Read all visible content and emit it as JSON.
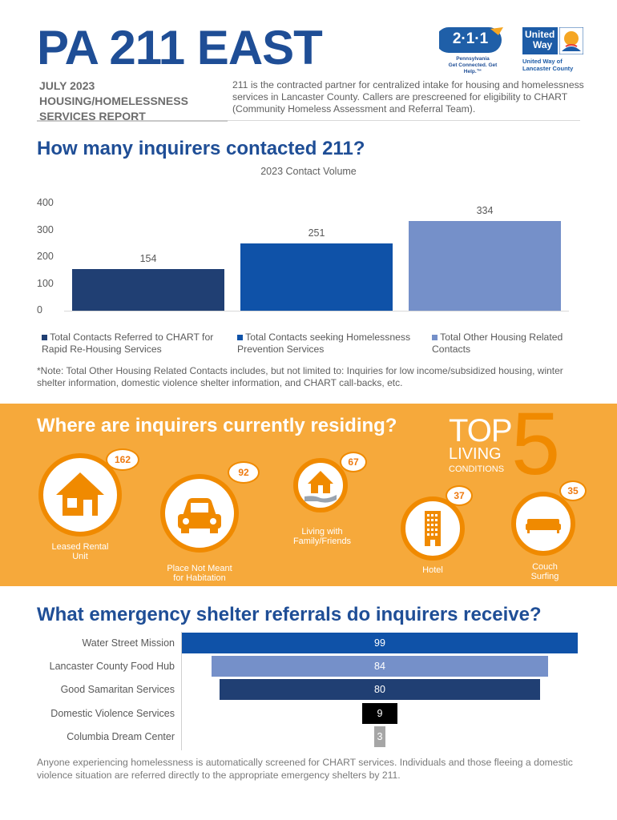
{
  "header": {
    "title": "PA 211 EAST",
    "subtitle_lines": [
      "JULY 2023",
      "HOUSING/HOMELESSNESS",
      "SERVICES REPORT"
    ],
    "intro": "211 is the contracted partner for centralized intake for housing and homelessness services in Lancaster County. Callers are prescreened for eligibility to CHART (Community Homeless Assessment and Referral Team).",
    "logo_211": {
      "badge": "2·1·1",
      "line1": "Pennsylvania",
      "line2": "Get Connected. Get Help.™"
    },
    "logo_uw": {
      "word1": "United",
      "word2": "Way",
      "caption1": "United Way of",
      "caption2": "Lancaster County"
    }
  },
  "contacts": {
    "heading": "How many inquirers contacted 211?",
    "note": "*Note: Total Other Housing Related Contacts includes, but not limited to: Inquiries for low income/subsidized housing, winter shelter information, domestic violence shelter information, and CHART call-backs, etc."
  },
  "chart_data": [
    {
      "type": "bar",
      "title": "2023 Contact Volume",
      "ylim": [
        0,
        400
      ],
      "yticks": [
        0,
        100,
        200,
        300,
        400
      ],
      "series": [
        {
          "name": "Total Contacts Referred to CHART for Rapid Re-Housing Services",
          "value": 154,
          "color": "#203f73"
        },
        {
          "name": "Total Contacts seeking Homelessness Prevention Services",
          "value": 251,
          "color": "#0f52a8"
        },
        {
          "name": "Total Other Housing Related Contacts",
          "value": 334,
          "color": "#7590c9"
        }
      ],
      "legend_position": "bottom"
    },
    {
      "type": "bar",
      "orientation": "horizontal",
      "title": "What emergency shelter referrals do inquirers receive?",
      "categories": [
        "Water Street Mission",
        "Lancaster County Food Hub",
        "Good Samaritan Services",
        "Domestic Violence Services",
        "Columbia Dream Center"
      ],
      "values": [
        99,
        84,
        80,
        9,
        3
      ],
      "colors": [
        "#0f52a8",
        "#7590c9",
        "#203f73",
        "#000000",
        "#a6a6a6"
      ]
    }
  ],
  "residing": {
    "heading": "Where are inquirers currently residing?",
    "top5": {
      "top": "TOP",
      "living": "LIVING",
      "conditions": "CONDITIONS",
      "number": "5"
    },
    "items": [
      {
        "label_lines": [
          "Leased Rental",
          "Unit"
        ],
        "count": "162",
        "icon": "house-icon"
      },
      {
        "label_lines": [
          "Place Not Meant",
          "for Habitation"
        ],
        "count": "92",
        "icon": "car-icon"
      },
      {
        "label_lines": [
          "Living with",
          "Family/Friends"
        ],
        "count": "67",
        "icon": "house-hand-icon"
      },
      {
        "label_lines": [
          "Hotel"
        ],
        "count": "37",
        "icon": "hotel-icon"
      },
      {
        "label_lines": [
          "Couch",
          "Surfing"
        ],
        "count": "35",
        "icon": "couch-icon"
      }
    ]
  },
  "footer": "Anyone experiencing homelessness is automatically screened for CHART services. Individuals and those fleeing a domestic violence situation are referred directly to the appropriate emergency shelters by 211."
}
